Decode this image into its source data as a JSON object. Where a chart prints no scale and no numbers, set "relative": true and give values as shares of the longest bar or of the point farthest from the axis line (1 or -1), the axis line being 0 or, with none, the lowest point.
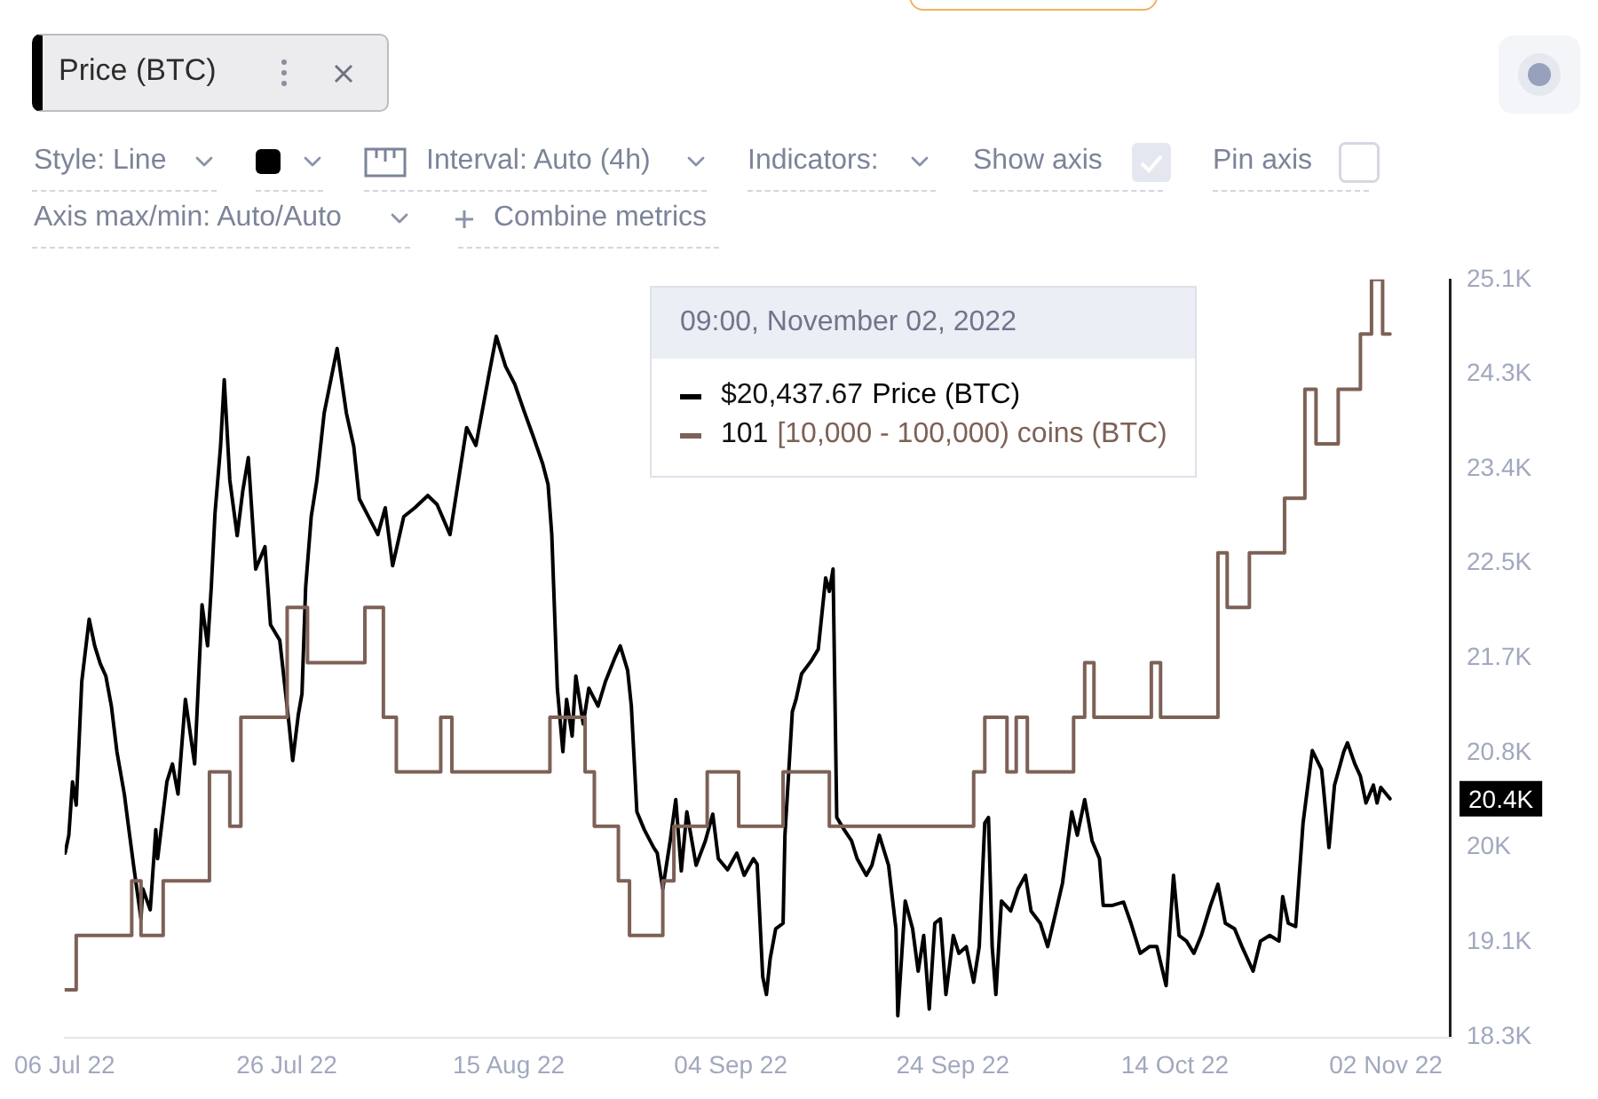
{
  "chart_data": [
    {
      "type": "line",
      "annotations": [
        "Price (BTC)",
        "Style: Line",
        "Interval: Auto (4h)",
        "Indicators:",
        "Show axis",
        "Pin axis",
        "Axis max/min: Auto/Auto",
        "Combine metrics",
        "09:00, November 02, 2022",
        "$20,437.67",
        "20.4K"
      ],
      "xlim": [
        "2022-07-06T00:00",
        "2022-11-07T20:00"
      ],
      "xticks": [
        {
          "value": "2022-07-06",
          "label": "06 Jul 22"
        },
        {
          "value": "2022-07-26",
          "label": "26 Jul 22"
        },
        {
          "value": "2022-08-15",
          "label": "15 Aug 22"
        },
        {
          "value": "2022-09-04",
          "label": "04 Sep 22"
        },
        {
          "value": "2022-09-24",
          "label": "24 Sep 22"
        },
        {
          "value": "2022-10-14",
          "label": "14 Oct 22"
        },
        {
          "value": "2022-11-02",
          "label": "02 Nov 22"
        }
      ],
      "ylim": [
        18300,
        25100
      ],
      "yticks": [
        {
          "value": 18300,
          "label": "18.3K"
        },
        {
          "value": 19150,
          "label": "19.1K"
        },
        {
          "value": 20000,
          "label": "20K"
        },
        {
          "value": 20850,
          "label": "20.8K"
        },
        {
          "value": 21700,
          "label": "21.7K"
        },
        {
          "value": 22550,
          "label": "22.5K"
        },
        {
          "value": 23400,
          "label": "23.4K"
        },
        {
          "value": 24250,
          "label": "24.3K"
        },
        {
          "value": 25100,
          "label": "25.1K"
        }
      ],
      "legend": "top",
      "series": [
        {
          "name": "Price (BTC)",
          "color": "#000000",
          "x": [
            "2022-07-06T01:00",
            "2022-07-06T09:00",
            "2022-07-06T17:00",
            "2022-07-07T01:00",
            "2022-07-07T13:00",
            "2022-07-08T05:00",
            "2022-07-08T17:00",
            "2022-07-09T05:00",
            "2022-07-09T17:00",
            "2022-07-10T05:00",
            "2022-07-10T17:00",
            "2022-07-11T09:00",
            "2022-07-11T17:00",
            "2022-07-12T05:00",
            "2022-07-12T21:00",
            "2022-07-13T01:00",
            "2022-07-13T17:00",
            "2022-07-14T05:00",
            "2022-07-14T09:00",
            "2022-07-15T05:00",
            "2022-07-15T17:00",
            "2022-07-16T05:00",
            "2022-07-16T21:00",
            "2022-07-17T17:00",
            "2022-07-18T09:00",
            "2022-07-18T21:00",
            "2022-07-19T05:00",
            "2022-07-19T13:00",
            "2022-07-20T01:00",
            "2022-07-20T09:00",
            "2022-07-20T21:00",
            "2022-07-21T13:00",
            "2022-07-22T01:00",
            "2022-07-22T13:00",
            "2022-07-23T05:00",
            "2022-07-24T01:00",
            "2022-07-24T13:00",
            "2022-07-25T09:00",
            "2022-07-26T05:00",
            "2022-07-26T13:00",
            "2022-07-27T01:00",
            "2022-07-27T09:00",
            "2022-07-27T17:00",
            "2022-07-28T05:00",
            "2022-07-28T17:00",
            "2022-07-29T09:00",
            "2022-07-30T13:00",
            "2022-07-31T09:00",
            "2022-08-01T01:00",
            "2022-08-01T13:00",
            "2022-08-02T09:00",
            "2022-08-03T05:00",
            "2022-08-03T21:00",
            "2022-08-04T13:00",
            "2022-08-05T13:00",
            "2022-08-06T13:00",
            "2022-08-07T17:00",
            "2022-08-08T13:00",
            "2022-08-09T17:00",
            "2022-08-10T05:00",
            "2022-08-11T05:00",
            "2022-08-12T01:00",
            "2022-08-13T05:00",
            "2022-08-13T21:00",
            "2022-08-14T17:00",
            "2022-08-15T13:00",
            "2022-08-16T09:00",
            "2022-08-17T05:00",
            "2022-08-18T01:00",
            "2022-08-18T13:00",
            "2022-08-18T21:00",
            "2022-08-19T09:00",
            "2022-08-19T21:00",
            "2022-08-20T05:00",
            "2022-08-20T17:00",
            "2022-08-21T01:00",
            "2022-08-21T17:00",
            "2022-08-22T05:00",
            "2022-08-23T01:00",
            "2022-08-23T17:00",
            "2022-08-24T13:00",
            "2022-08-25T01:00",
            "2022-08-25T17:00",
            "2022-08-26T01:00",
            "2022-08-26T13:00",
            "2022-08-27T05:00",
            "2022-08-28T01:00",
            "2022-08-28T09:00",
            "2022-08-28T21:00",
            "2022-08-29T13:00",
            "2022-08-30T01:00",
            "2022-08-30T13:00",
            "2022-08-31T01:00",
            "2022-08-31T21:00",
            "2022-09-01T17:00",
            "2022-09-02T09:00",
            "2022-09-02T21:00",
            "2022-09-03T17:00",
            "2022-09-04T13:00",
            "2022-09-05T05:00",
            "2022-09-06T01:00",
            "2022-09-06T09:00",
            "2022-09-06T21:00",
            "2022-09-07T05:00",
            "2022-09-07T13:00",
            "2022-09-08T01:00",
            "2022-09-08T17:00",
            "2022-09-08T21:00",
            "2022-09-09T13:00",
            "2022-09-09T21:00",
            "2022-09-10T09:00",
            "2022-09-11T05:00",
            "2022-09-11T21:00",
            "2022-09-12T05:00",
            "2022-09-12T13:00",
            "2022-09-12T21:00",
            "2022-09-13T05:00",
            "2022-09-13T13:00",
            "2022-09-14T05:00",
            "2022-09-14T21:00",
            "2022-09-15T09:00",
            "2022-09-16T05:00",
            "2022-09-16T17:00",
            "2022-09-17T09:00",
            "2022-09-18T05:00",
            "2022-09-18T21:00",
            "2022-09-19T01:00",
            "2022-09-19T17:00",
            "2022-09-20T09:00",
            "2022-09-20T21:00",
            "2022-09-21T09:00",
            "2022-09-21T21:00",
            "2022-09-22T09:00",
            "2022-09-22T21:00",
            "2022-09-23T09:00",
            "2022-09-24T01:00",
            "2022-09-24T13:00",
            "2022-09-25T05:00",
            "2022-09-25T21:00",
            "2022-09-26T09:00",
            "2022-09-26T21:00",
            "2022-09-27T05:00",
            "2022-09-27T13:00",
            "2022-09-27T21:00",
            "2022-09-28T09:00",
            "2022-09-29T05:00",
            "2022-09-29T21:00",
            "2022-09-30T13:00",
            "2022-10-01T01:00",
            "2022-10-01T21:00",
            "2022-10-02T13:00",
            "2022-10-03T01:00",
            "2022-10-03T21:00",
            "2022-10-04T17:00",
            "2022-10-05T05:00",
            "2022-10-05T21:00",
            "2022-10-06T13:00",
            "2022-10-07T05:00",
            "2022-10-07T13:00",
            "2022-10-08T09:00",
            "2022-10-09T09:00",
            "2022-10-10T01:00",
            "2022-10-10T21:00",
            "2022-10-11T17:00",
            "2022-10-12T09:00",
            "2022-10-13T05:00",
            "2022-10-13T21:00",
            "2022-10-14T09:00",
            "2022-10-15T01:00",
            "2022-10-15T17:00",
            "2022-10-16T09:00",
            "2022-10-17T05:00",
            "2022-10-17T21:00",
            "2022-10-18T13:00",
            "2022-10-19T09:00",
            "2022-10-20T01:00",
            "2022-10-21T01:00",
            "2022-10-21T17:00",
            "2022-10-22T13:00",
            "2022-10-23T09:00",
            "2022-10-23T17:00",
            "2022-10-24T05:00",
            "2022-10-24T21:00",
            "2022-10-25T13:00",
            "2022-10-26T09:00",
            "2022-10-27T05:00",
            "2022-10-27T09:00",
            "2022-10-27T21:00",
            "2022-10-28T09:00",
            "2022-10-29T05:00",
            "2022-10-29T13:00",
            "2022-10-30T05:00",
            "2022-10-30T17:00",
            "2022-10-31T05:00",
            "2022-10-31T21:00",
            "2022-11-01T05:00",
            "2022-11-01T13:00",
            "2022-11-02T09:00"
          ],
          "values": [
            19950,
            20110,
            20590,
            20380,
            21490,
            22050,
            21810,
            21650,
            21540,
            21270,
            20860,
            20480,
            20220,
            19840,
            19360,
            19630,
            19440,
            20160,
            19900,
            20590,
            20750,
            20480,
            21330,
            20750,
            22180,
            21810,
            22340,
            23000,
            23600,
            24200,
            23300,
            22800,
            23200,
            23500,
            22500,
            22700,
            22000,
            21860,
            21110,
            20780,
            21190,
            21380,
            22340,
            22970,
            23290,
            23900,
            24480,
            23900,
            23600,
            23130,
            22970,
            22810,
            23050,
            22530,
            22970,
            23050,
            23160,
            23080,
            22810,
            23130,
            23770,
            23610,
            24240,
            24590,
            24320,
            24160,
            23920,
            23690,
            23450,
            23260,
            22810,
            21430,
            20860,
            21330,
            21000,
            21540,
            21110,
            21430,
            21270,
            21490,
            21700,
            21810,
            21590,
            21270,
            20320,
            20160,
            20000,
            19950,
            19630,
            20060,
            20430,
            19790,
            20320,
            19840,
            20060,
            20300,
            19900,
            19800,
            19950,
            19750,
            19900,
            19850,
            18840,
            18680,
            19000,
            19270,
            19320,
            20110,
            21220,
            21330,
            21560,
            21670,
            21780,
            22100,
            22420,
            22300,
            22500,
            20270,
            20160,
            20060,
            19900,
            19750,
            19840,
            20110,
            19840,
            19270,
            18490,
            19520,
            19270,
            18890,
            19210,
            18550,
            19320,
            19360,
            18680,
            19210,
            19050,
            19110,
            18790,
            19110,
            20220,
            20270,
            19110,
            18680,
            19520,
            19430,
            19630,
            19750,
            19430,
            19320,
            19110,
            19320,
            19680,
            20320,
            20110,
            20430,
            20060,
            19900,
            19480,
            19480,
            19510,
            19320,
            19050,
            19110,
            19110,
            18760,
            19750,
            19210,
            19160,
            19050,
            19210,
            19480,
            19670,
            19320,
            19270,
            19110,
            18890,
            19160,
            19210,
            19160,
            19560,
            19320,
            19290,
            20220,
            20870,
            20700,
            20540,
            20000,
            20560,
            20860,
            20940,
            20750,
            20640,
            20400,
            20560,
            20400,
            20540,
            20437.67
          ]
        }
      ]
    },
    {
      "type": "step",
      "relative": true,
      "tick_labels": false,
      "legend": "top",
      "annotations": [
        "101"
      ],
      "xlim": [
        "2022-07-06T00:00",
        "2022-11-07T20:00"
      ],
      "series": [
        {
          "name": "[10,000 - 100,000) coins (BTC)",
          "color": "#7d6156",
          "x": [
            "2022-07-06T01:00",
            "2022-07-07T01:00",
            "2022-07-12T01:00",
            "2022-07-12T21:00",
            "2022-07-14T21:00",
            "2022-07-19T01:00",
            "2022-07-20T21:00",
            "2022-07-21T21:00",
            "2022-07-26T01:00",
            "2022-07-27T21:00",
            "2022-08-02T01:00",
            "2022-08-03T17:00",
            "2022-08-04T21:00",
            "2022-08-08T21:00",
            "2022-08-09T21:00",
            "2022-08-18T17:00",
            "2022-08-21T21:00",
            "2022-08-22T17:00",
            "2022-08-24T21:00",
            "2022-08-25T21:00",
            "2022-08-28T21:00",
            "2022-08-29T21:00",
            "2022-09-01T21:00",
            "2022-09-04T17:00",
            "2022-09-08T17:00",
            "2022-09-12T21:00",
            "2022-09-25T21:00",
            "2022-09-26T21:00",
            "2022-09-28T21:00",
            "2022-09-29T17:00",
            "2022-09-30T17:00",
            "2022-10-04T21:00",
            "2022-10-05T21:00",
            "2022-10-06T17:00",
            "2022-10-11T21:00",
            "2022-10-12T17:00",
            "2022-10-17T21:00",
            "2022-10-18T17:00",
            "2022-10-20T17:00",
            "2022-10-23T21:00",
            "2022-10-25T17:00",
            "2022-10-26T17:00",
            "2022-10-28T17:00",
            "2022-10-30T17:00",
            "2022-10-31T17:00",
            "2022-11-01T17:00",
            "2022-11-02T09:00"
          ],
          "values": [
            0.062,
            0.134,
            0.206,
            0.134,
            0.206,
            0.35,
            0.278,
            0.422,
            0.567,
            0.494,
            0.567,
            0.422,
            0.35,
            0.422,
            0.35,
            0.422,
            0.35,
            0.278,
            0.206,
            0.134,
            0.206,
            0.278,
            0.35,
            0.278,
            0.35,
            0.278,
            0.35,
            0.422,
            0.35,
            0.422,
            0.35,
            0.422,
            0.494,
            0.422,
            0.494,
            0.422,
            0.639,
            0.567,
            0.639,
            0.711,
            0.855,
            0.783,
            0.855,
            0.928,
            1,
            0.928,
            0.928
          ]
        }
      ]
    }
  ]
}
